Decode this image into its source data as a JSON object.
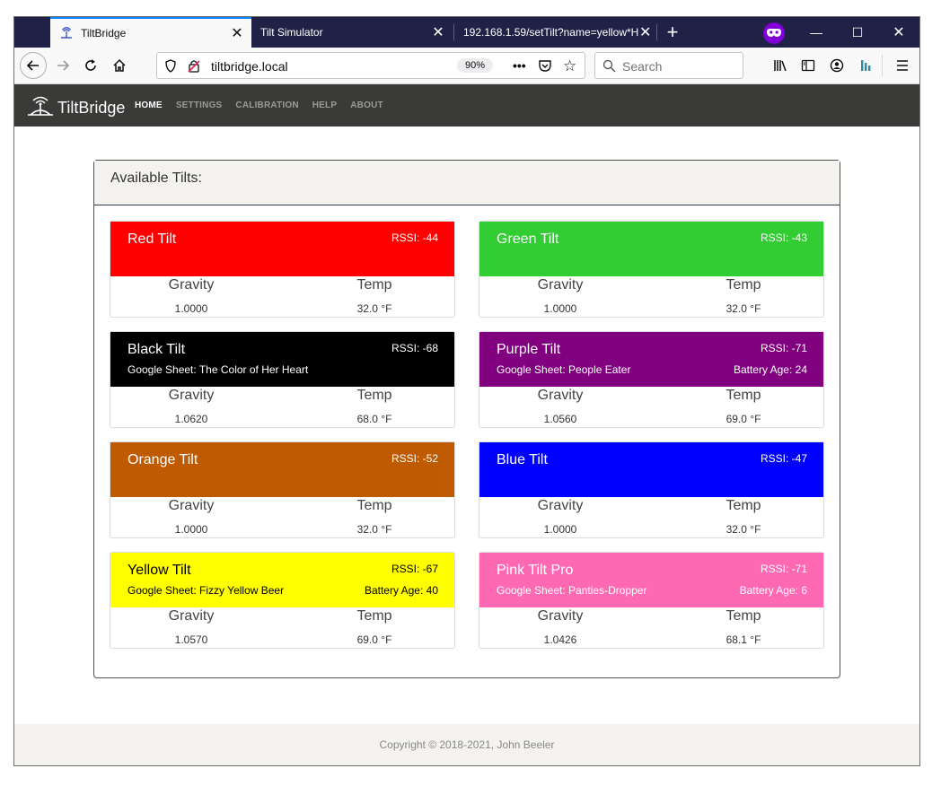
{
  "browser": {
    "tabs": [
      {
        "title": "TiltBridge",
        "active": true
      },
      {
        "title": "Tilt Simulator",
        "active": false
      },
      {
        "title": "192.168.1.59/setTilt?name=yellow*H",
        "active": false
      }
    ],
    "url": "tiltbridge.local",
    "zoom": "90%",
    "search_placeholder": "Search"
  },
  "app": {
    "brand": "TiltBridge",
    "nav": [
      "HOME",
      "SETTINGS",
      "CALIBRATION",
      "HELP",
      "ABOUT"
    ],
    "active_nav": "HOME"
  },
  "panel": {
    "title": "Available Tilts:",
    "gravity_label": "Gravity",
    "temp_label": "Temp"
  },
  "tilts": [
    {
      "name": "Red Tilt",
      "rssi": "RSSI: -44",
      "sheet": "",
      "battery": "",
      "gravity": "1.0000",
      "temp": "32.0 °F",
      "color": "#ff0000",
      "text_color": "#ffffff"
    },
    {
      "name": "Green Tilt",
      "rssi": "RSSI: -43",
      "sheet": "",
      "battery": "",
      "gravity": "1.0000",
      "temp": "32.0 °F",
      "color": "#32cd32",
      "text_color": "#ffffff"
    },
    {
      "name": "Black Tilt",
      "rssi": "RSSI: -68",
      "sheet": "Google Sheet: The Color of Her Heart",
      "battery": "",
      "gravity": "1.0620",
      "temp": "68.0 °F",
      "color": "#000000",
      "text_color": "#ffffff"
    },
    {
      "name": "Purple Tilt",
      "rssi": "RSSI: -71",
      "sheet": "Google Sheet: People Eater",
      "battery": "Battery Age: 24",
      "gravity": "1.0560",
      "temp": "69.0 °F",
      "color": "#800080",
      "text_color": "#ffffff"
    },
    {
      "name": "Orange Tilt",
      "rssi": "RSSI: -52",
      "sheet": "",
      "battery": "",
      "gravity": "1.0000",
      "temp": "32.0 °F",
      "color": "#bf5a00",
      "text_color": "#ffffff"
    },
    {
      "name": "Blue Tilt",
      "rssi": "RSSI: -47",
      "sheet": "",
      "battery": "",
      "gravity": "1.0000",
      "temp": "32.0 °F",
      "color": "#0000ff",
      "text_color": "#ffffff"
    },
    {
      "name": "Yellow Tilt",
      "rssi": "RSSI: -67",
      "sheet": "Google Sheet: Fizzy Yellow Beer",
      "battery": "Battery Age: 40",
      "gravity": "1.0570",
      "temp": "69.0 °F",
      "color": "#ffff00",
      "text_color": "#000000"
    },
    {
      "name": "Pink Tilt Pro",
      "rssi": "RSSI: -71",
      "sheet": "Google Sheet: Panties-Dropper",
      "battery": "Battery Age: 6",
      "gravity": "1.0426",
      "temp": "68.1 °F",
      "color": "#ff69b4",
      "text_color": "#ffffff"
    }
  ],
  "footer": "Copyright © 2018-2021, John Beeler"
}
